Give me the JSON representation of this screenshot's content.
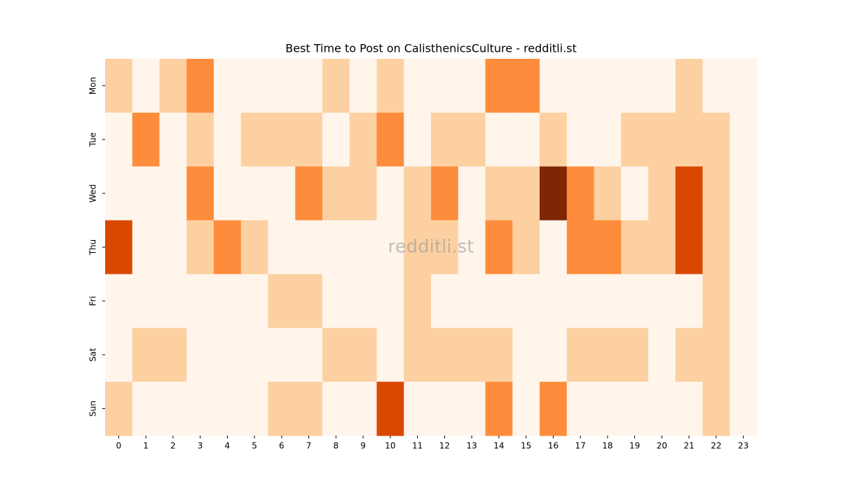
{
  "chart_data": {
    "type": "heatmap",
    "title": "Best Time to Post on CalisthenicsCulture - redditli.st",
    "watermark": "redditli.st",
    "x": [
      0,
      1,
      2,
      3,
      4,
      5,
      6,
      7,
      8,
      9,
      10,
      11,
      12,
      13,
      14,
      15,
      16,
      17,
      18,
      19,
      20,
      21,
      22,
      23
    ],
    "y": [
      "Mon",
      "Tue",
      "Wed",
      "Thu",
      "Fri",
      "Sat",
      "Sun"
    ],
    "values": [
      [
        1,
        0,
        1,
        2,
        0,
        0,
        0,
        0,
        1,
        0,
        1,
        0,
        0,
        0,
        2,
        2,
        0,
        0,
        0,
        0,
        0,
        1,
        0,
        0
      ],
      [
        0,
        2,
        0,
        1,
        0,
        1,
        1,
        1,
        0,
        1,
        2,
        0,
        1,
        1,
        0,
        0,
        1,
        0,
        0,
        1,
        1,
        1,
        1,
        0
      ],
      [
        0,
        0,
        0,
        2,
        0,
        0,
        0,
        2,
        1,
        1,
        0,
        1,
        2,
        0,
        1,
        1,
        4,
        2,
        1,
        0,
        1,
        3,
        1,
        0
      ],
      [
        3,
        0,
        0,
        1,
        2,
        1,
        0,
        0,
        0,
        0,
        0,
        1,
        1,
        0,
        2,
        1,
        0,
        2,
        2,
        1,
        1,
        3,
        1,
        0
      ],
      [
        0,
        0,
        0,
        0,
        0,
        0,
        1,
        1,
        0,
        0,
        0,
        1,
        0,
        0,
        0,
        0,
        0,
        0,
        0,
        0,
        0,
        0,
        1,
        0
      ],
      [
        0,
        1,
        1,
        0,
        0,
        0,
        0,
        0,
        1,
        1,
        0,
        1,
        1,
        1,
        1,
        0,
        0,
        1,
        1,
        1,
        0,
        1,
        1,
        0
      ],
      [
        1,
        0,
        0,
        0,
        0,
        0,
        1,
        1,
        0,
        0,
        3,
        0,
        0,
        0,
        2,
        0,
        2,
        0,
        0,
        0,
        0,
        0,
        1,
        0
      ]
    ],
    "vlim": [
      0,
      4
    ],
    "colors": [
      "#fff5eb",
      "#fdd0a2",
      "#fd8d3c",
      "#d94801",
      "#7f2704"
    ]
  }
}
